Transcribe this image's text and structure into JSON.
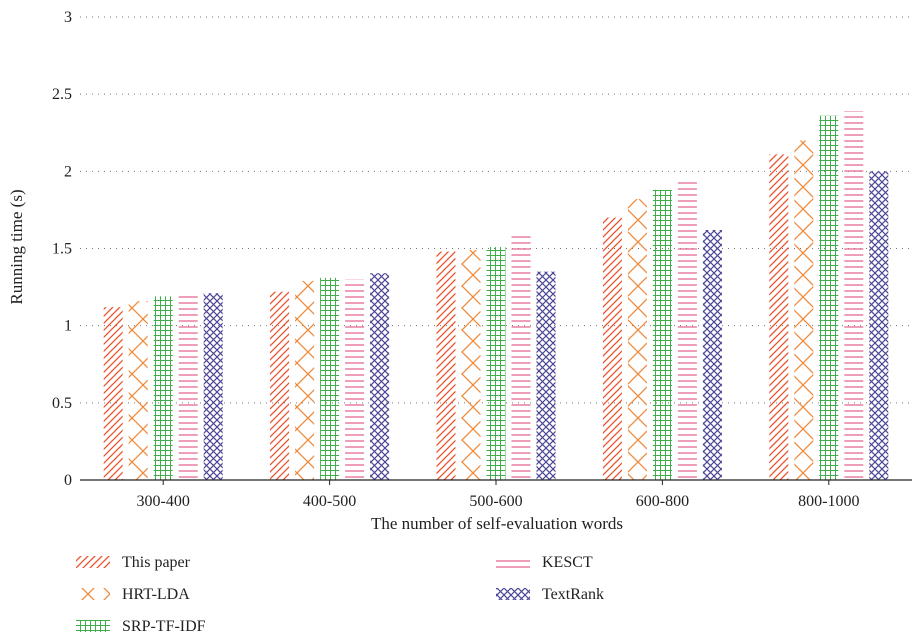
{
  "chart_data": {
    "type": "bar",
    "xlabel": "The number of self-evaluation words",
    "ylabel": "Running time (s)",
    "ylim": [
      0,
      3
    ],
    "yticks": [
      "0",
      "0.5",
      "1",
      "1.5",
      "2",
      "2.5",
      "3"
    ],
    "grid": "horizontal-dotted",
    "legend_position": "bottom",
    "categories": [
      "300-400",
      "400-500",
      "500-600",
      "600-800",
      "800-1000"
    ],
    "series": [
      {
        "name": "This paper",
        "color": "#e8502a",
        "pattern": "diagonal-lines",
        "values": [
          1.12,
          1.22,
          1.48,
          1.7,
          2.11
        ]
      },
      {
        "name": "HRT-LDA",
        "color": "#ee8a3a",
        "pattern": "crosshatch",
        "values": [
          1.16,
          1.29,
          1.49,
          1.82,
          2.2
        ]
      },
      {
        "name": "SRP-TF-IDF",
        "color": "#3fae4a",
        "pattern": "grid",
        "values": [
          1.19,
          1.31,
          1.51,
          1.88,
          2.36
        ]
      },
      {
        "name": "KESCT",
        "color": "#e45c8c",
        "pattern": "horizontal-lines",
        "values": [
          1.21,
          1.3,
          1.6,
          1.93,
          2.39
        ]
      },
      {
        "name": "TextRank",
        "color": "#4a4596",
        "pattern": "dense-crosshatch",
        "values": [
          1.21,
          1.34,
          1.35,
          1.62,
          2.0
        ]
      }
    ]
  }
}
